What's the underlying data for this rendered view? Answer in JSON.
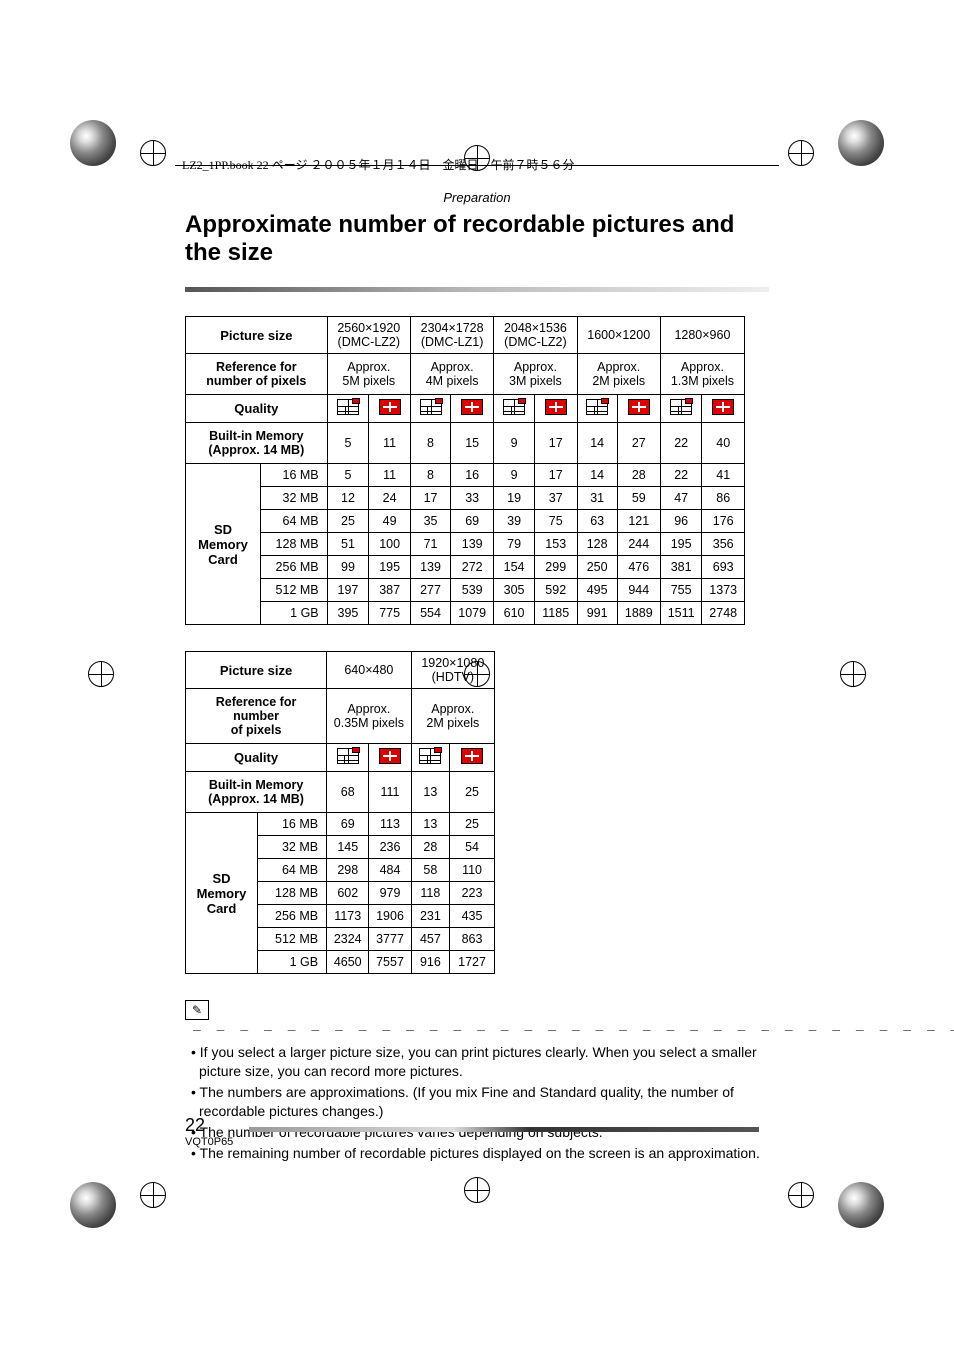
{
  "header_text": "LZ2_1PP.book  22 ページ  ２００５年１月１４日　金曜日　午前７時５６分",
  "section": "Preparation",
  "title": "Approximate number of recordable pictures and the size",
  "table1": {
    "row_hdr_picsize": "Picture size",
    "row_hdr_ref": "Reference for number of pixels",
    "row_hdr_quality": "Quality",
    "row_hdr_builtin_l1": "Built-in Memory",
    "row_hdr_builtin_l2": "(Approx. 14 MB)",
    "row_hdr_sd": "SD Memory Card",
    "sizes": [
      {
        "l1": "2560×1920",
        "l2": "(DMC-LZ2)",
        "px": "Approx. 5M pixels"
      },
      {
        "l1": "2304×1728",
        "l2": "(DMC-LZ1)",
        "px": "Approx. 4M pixels"
      },
      {
        "l1": "2048×1536",
        "l2": "(DMC-LZ2)",
        "px": "Approx. 3M pixels"
      },
      {
        "l1": "1600×1200",
        "l2": "",
        "px": "Approx. 2M pixels"
      },
      {
        "l1": "1280×960",
        "l2": "",
        "px": "Approx. 1.3M pixels"
      }
    ],
    "card_sizes": [
      "16 MB",
      "32 MB",
      "64 MB",
      "128 MB",
      "256 MB",
      "512 MB",
      "1 GB"
    ],
    "builtin": [
      "5",
      "11",
      "8",
      "15",
      "9",
      "17",
      "14",
      "27",
      "22",
      "40"
    ],
    "rows": [
      [
        "5",
        "11",
        "8",
        "16",
        "9",
        "17",
        "14",
        "28",
        "22",
        "41"
      ],
      [
        "12",
        "24",
        "17",
        "33",
        "19",
        "37",
        "31",
        "59",
        "47",
        "86"
      ],
      [
        "25",
        "49",
        "35",
        "69",
        "39",
        "75",
        "63",
        "121",
        "96",
        "176"
      ],
      [
        "51",
        "100",
        "71",
        "139",
        "79",
        "153",
        "128",
        "244",
        "195",
        "356"
      ],
      [
        "99",
        "195",
        "139",
        "272",
        "154",
        "299",
        "250",
        "476",
        "381",
        "693"
      ],
      [
        "197",
        "387",
        "277",
        "539",
        "305",
        "592",
        "495",
        "944",
        "755",
        "1373"
      ],
      [
        "395",
        "775",
        "554",
        "1079",
        "610",
        "1185",
        "991",
        "1889",
        "1511",
        "2748"
      ]
    ]
  },
  "table2": {
    "sizes": [
      {
        "l1": "640×480",
        "l2": "",
        "px": "Approx. 0.35M pixels"
      },
      {
        "l1": "1920×1080",
        "l2": "(HDTV)",
        "px": "Approx. 2M pixels"
      }
    ],
    "builtin": [
      "68",
      "111",
      "13",
      "25"
    ],
    "rows": [
      [
        "69",
        "113",
        "13",
        "25"
      ],
      [
        "145",
        "236",
        "28",
        "54"
      ],
      [
        "298",
        "484",
        "58",
        "110"
      ],
      [
        "602",
        "979",
        "118",
        "223"
      ],
      [
        "1173",
        "1906",
        "231",
        "435"
      ],
      [
        "2324",
        "3777",
        "457",
        "863"
      ],
      [
        "4650",
        "7557",
        "916",
        "1727"
      ]
    ]
  },
  "notes": [
    "If you select a larger picture size, you can print pictures clearly. When you select a smaller picture size, you can record more pictures.",
    "The numbers are approximations. (If you mix Fine and Standard quality, the number of recordable pictures changes.)",
    "The number of recordable pictures varies depending on subjects.",
    "The remaining number of recordable pictures displayed on the screen is an approximation."
  ],
  "page_num": "22",
  "page_code": "VQT0P65",
  "colors": {
    "accent_red": "#d00"
  }
}
